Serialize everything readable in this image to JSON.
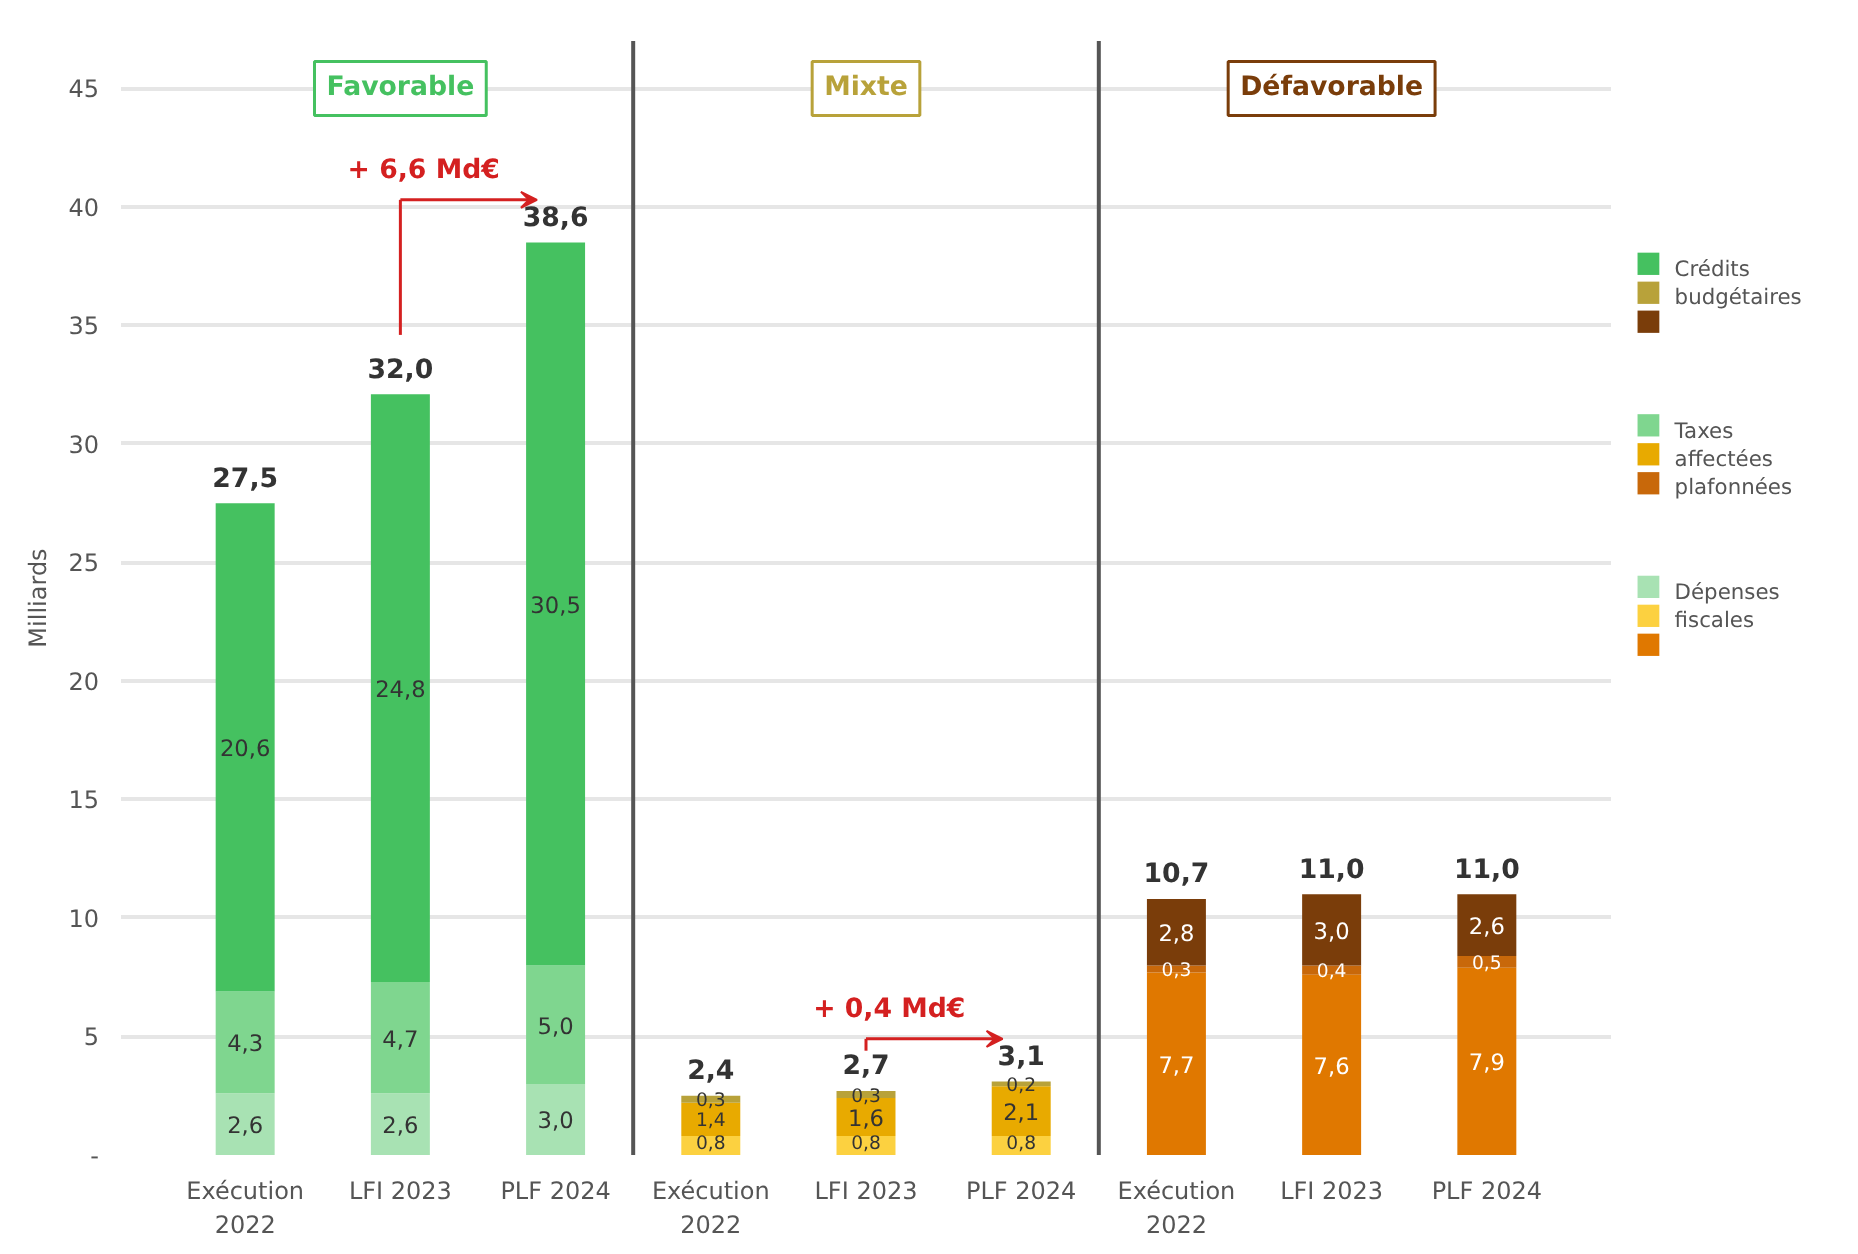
{
  "chart_data": {
    "type": "bar",
    "stacked": true,
    "ylabel": "Milliards",
    "categories": [
      "Exécution\n2022",
      "LFI 2023",
      "PLF 2024",
      "Exécution\n2022",
      "LFI 2023",
      "PLF 2024",
      "Exécution\n2022",
      "LFI 2023",
      "PLF 2024"
    ],
    "series": [
      {
        "name": "Dépenses fiscales",
        "colors": [
          "#a8e2b3",
          "#a8e2b3",
          "#a8e2b3",
          "#fcd140",
          "#fcd140",
          "#fcd140",
          "#e07800",
          "#e07800",
          "#e07800"
        ],
        "values": [
          2.6,
          2.6,
          3.0,
          0.8,
          0.8,
          0.8,
          7.7,
          7.6,
          7.9
        ],
        "value_labels": [
          "2,6",
          "2,6",
          "3,0",
          "0,8",
          "0,8",
          "0,8",
          "7,7",
          "7,6",
          "7,9"
        ]
      },
      {
        "name": "Taxes affectées plafonnées",
        "colors": [
          "#7fd68f",
          "#7fd68f",
          "#7fd68f",
          "#e8aa00",
          "#e8aa00",
          "#e8aa00",
          "#c8680a",
          "#c8680a",
          "#c8680a"
        ],
        "values": [
          4.3,
          4.7,
          5.0,
          1.4,
          1.6,
          2.1,
          0.3,
          0.4,
          0.5
        ],
        "value_labels": [
          "4,3",
          "4,7",
          "5,0",
          "1,4",
          "1,6",
          "2,1",
          "0,3",
          "0,4",
          "0,5"
        ]
      },
      {
        "name": "Crédits budgétaires",
        "colors": [
          "#45c160",
          "#45c160",
          "#45c160",
          "#b8a23a",
          "#b8a23a",
          "#b8a23a",
          "#7a3d0a",
          "#7a3d0a",
          "#7a3d0a"
        ],
        "values": [
          20.6,
          24.8,
          30.5,
          0.3,
          0.3,
          0.2,
          2.8,
          3.0,
          2.6
        ],
        "value_labels": [
          "20,6",
          "24,8",
          "30,5",
          "0,3",
          "0,3",
          "0,2",
          "2,8",
          "3,0",
          "2,6"
        ]
      }
    ],
    "totals": [
      "27,5",
      "32,0",
      "38,6",
      "2,4",
      "2,7",
      "3,1",
      "10,7",
      "11,0",
      "11,0"
    ],
    "ylim": [
      0,
      47
    ],
    "yticks": [
      {
        "value": 0,
        "label": "-"
      },
      5,
      10,
      15,
      20,
      25,
      30,
      35,
      40,
      45
    ],
    "grid": "y",
    "legend": "right",
    "annotations": [
      "Favorable",
      "Mixte",
      "Défavorable",
      "+ 6,6 Md€",
      "+ 0,4 Md€"
    ]
  }
}
